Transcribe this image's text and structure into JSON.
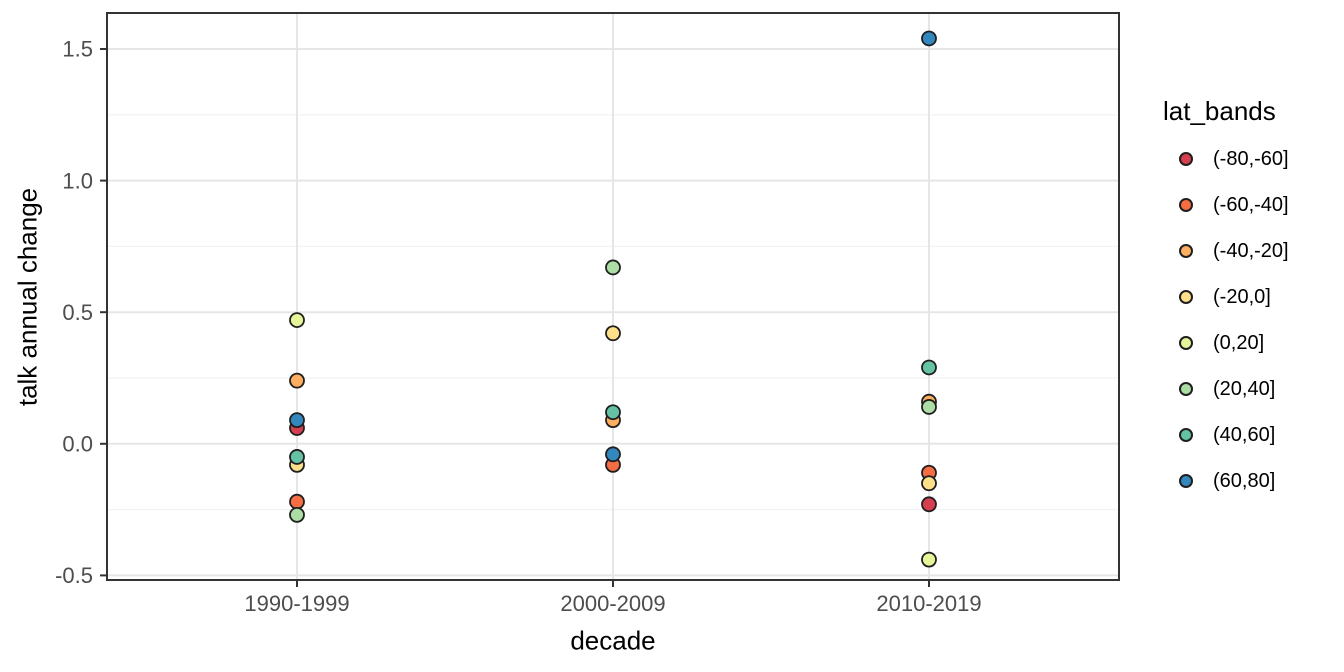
{
  "chart_data": {
    "type": "scatter",
    "title": "",
    "xlabel": "decade",
    "ylabel": "talk annual change",
    "categories": [
      "1990-1999",
      "2000-2009",
      "2010-2019"
    ],
    "ylim": [
      -0.52,
      1.64
    ],
    "y_major_ticks": [
      1.5,
      1.0,
      0.5,
      0.0,
      -0.5
    ],
    "y_tick_labels": [
      "1.5",
      "1.0",
      "0.5",
      "0.0",
      "-0.5"
    ],
    "y_minor_ticks": [
      1.25,
      0.75,
      0.25,
      -0.25
    ],
    "grid": true,
    "legend_position": "right",
    "legend_title": "lat_bands",
    "series": [
      {
        "name": "(-80,-60]",
        "color": "#D53E4F",
        "values": [
          0.06,
          null,
          -0.23
        ]
      },
      {
        "name": "(-60,-40]",
        "color": "#F46D43",
        "values": [
          -0.22,
          -0.08,
          -0.11
        ]
      },
      {
        "name": "(-40,-20]",
        "color": "#FDAE61",
        "values": [
          0.24,
          0.09,
          0.16
        ]
      },
      {
        "name": "(-20,0]",
        "color": "#FEE08B",
        "values": [
          -0.08,
          0.42,
          -0.15
        ]
      },
      {
        "name": "(0,20]",
        "color": "#E6F598",
        "values": [
          0.47,
          null,
          -0.44
        ]
      },
      {
        "name": "(20,40]",
        "color": "#ABDDA4",
        "values": [
          -0.27,
          0.67,
          0.14
        ]
      },
      {
        "name": "(40,60]",
        "color": "#66C2A5",
        "values": [
          -0.05,
          0.12,
          0.29
        ]
      },
      {
        "name": "(60,80]",
        "color": "#3288BD",
        "values": [
          0.09,
          -0.04,
          1.54
        ]
      }
    ],
    "style": {
      "point_stroke": "#1f1f1f",
      "panel_border": "#333333",
      "grid_major": "#e6e6e6",
      "grid_minor": "#f2f2f2",
      "tick_label_color": "#4d4d4d"
    }
  }
}
